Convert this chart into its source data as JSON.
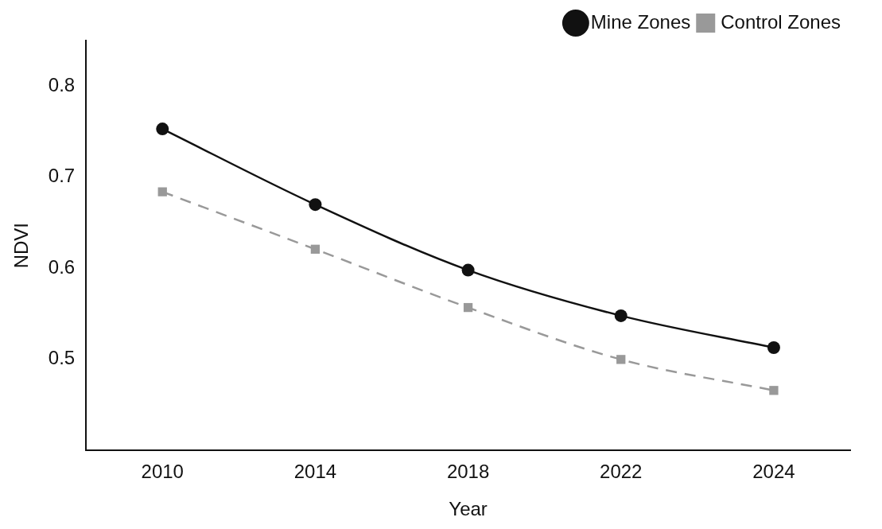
{
  "chart_data": {
    "type": "line",
    "xlabel": "Year",
    "ylabel": "NDVI",
    "categories": [
      "2010",
      "2014",
      "2018",
      "2022",
      "2024"
    ],
    "series": [
      {
        "name": "Mine Zones",
        "color": "#111111",
        "values": [
          0.753,
          0.67,
          0.598,
          0.548,
          0.513
        ],
        "marker": "circle",
        "line_style": "solid"
      },
      {
        "name": "Control Zones",
        "color": "#999999",
        "values": [
          0.684,
          0.621,
          0.557,
          0.5,
          0.466
        ],
        "marker": "square",
        "line_style": "dashed"
      }
    ],
    "ylim": [
      0.4,
      0.85
    ],
    "yticks": [
      0.5,
      0.6,
      0.7,
      0.8
    ],
    "grid": false,
    "legend": "top right"
  }
}
